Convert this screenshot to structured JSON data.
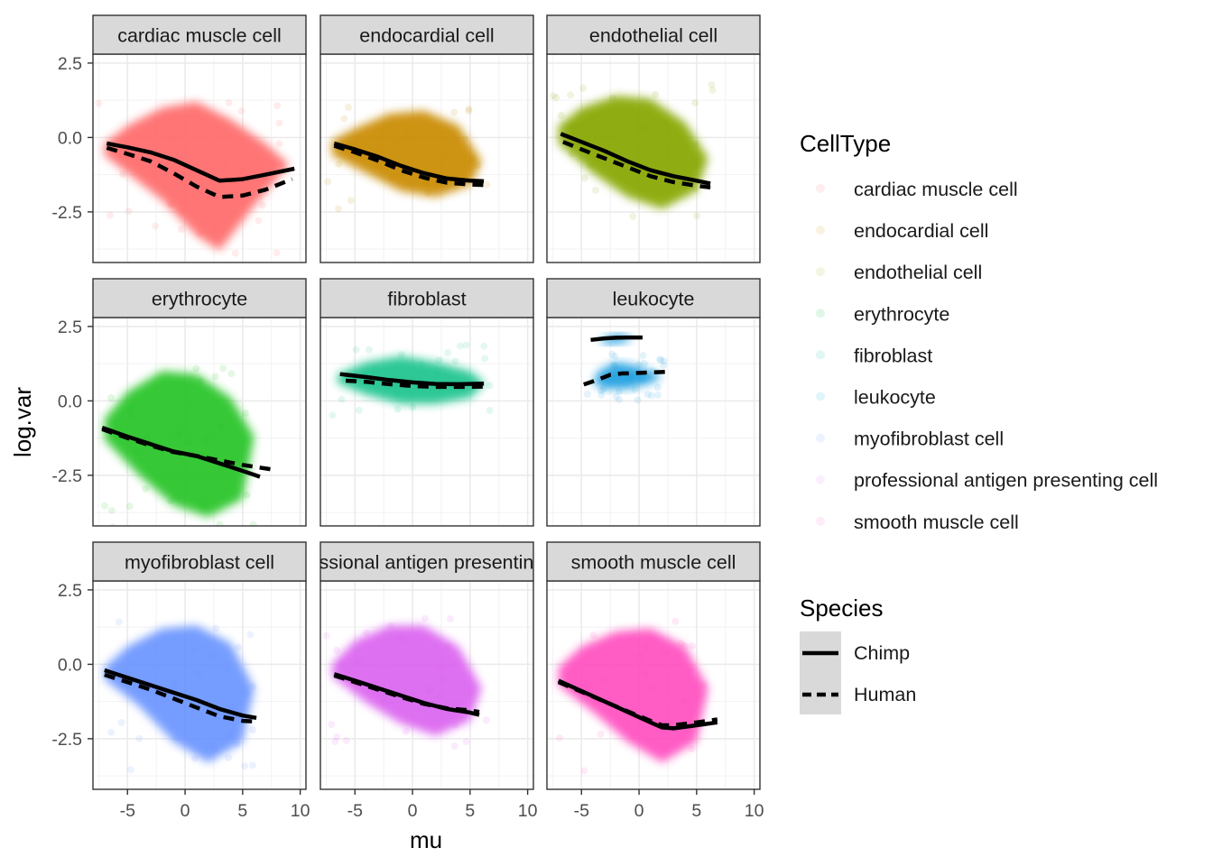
{
  "chart_data": {
    "type": "scatter",
    "facet_type": "scatter with smoothed trend lines",
    "xlabel": "mu",
    "ylabel": "log.var",
    "xlim": [
      -8,
      10.5
    ],
    "ylim": [
      -4.2,
      2.8
    ],
    "x_ticks": [
      -5,
      0,
      5,
      10
    ],
    "x_tick_labels": [
      "-5",
      "0",
      "5",
      "10"
    ],
    "y_ticks": [
      -2.5,
      0.0,
      2.5
    ],
    "y_tick_labels": [
      "-2.5",
      "0.0",
      "2.5"
    ],
    "grid": true,
    "legend_position": "right",
    "legends": {
      "celltype": {
        "title": "CellType",
        "items": [
          {
            "label": "cardiac muscle cell",
            "color": "#F8766D"
          },
          {
            "label": "endocardial cell",
            "color": "#D39200"
          },
          {
            "label": "endothelial cell",
            "color": "#93AA00"
          },
          {
            "label": "erythrocyte",
            "color": "#00BA38"
          },
          {
            "label": "fibroblast",
            "color": "#00C19F"
          },
          {
            "label": "leukocyte",
            "color": "#00B9E3"
          },
          {
            "label": "myofibroblast cell",
            "color": "#619CFF"
          },
          {
            "label": "professional antigen presenting cell",
            "color": "#DB72FB"
          },
          {
            "label": "smooth muscle cell",
            "color": "#FF61C3"
          }
        ]
      },
      "species": {
        "title": "Species",
        "items": [
          {
            "label": "Chimp",
            "linetype": "solid"
          },
          {
            "label": "Human",
            "linetype": "dashed"
          }
        ]
      }
    },
    "panels": [
      {
        "strip": "cardiac muscle cell",
        "color": "#FF6B6B",
        "cloud": [
          [
            -7,
            -0.2
          ],
          [
            -5,
            0.4
          ],
          [
            -2,
            1.0
          ],
          [
            1,
            1.2
          ],
          [
            4,
            0.6
          ],
          [
            7,
            -0.2
          ],
          [
            9,
            -0.9
          ],
          [
            6,
            -2.3
          ],
          [
            3,
            -3.8
          ],
          [
            1,
            -3.3
          ],
          [
            -2,
            -2.1
          ],
          [
            -5,
            -1.2
          ],
          [
            -7,
            -0.6
          ]
        ],
        "chimp": [
          [
            -6.8,
            -0.2
          ],
          [
            -5,
            -0.33
          ],
          [
            -3,
            -0.5
          ],
          [
            -1,
            -0.75
          ],
          [
            1,
            -1.1
          ],
          [
            3,
            -1.45
          ],
          [
            5,
            -1.4
          ],
          [
            7,
            -1.25
          ],
          [
            9.5,
            -1.05
          ]
        ],
        "human": [
          [
            -6.8,
            -0.35
          ],
          [
            -5,
            -0.55
          ],
          [
            -3,
            -0.8
          ],
          [
            -1,
            -1.2
          ],
          [
            1,
            -1.65
          ],
          [
            3,
            -2.0
          ],
          [
            5,
            -1.95
          ],
          [
            7,
            -1.75
          ],
          [
            9.3,
            -1.4
          ]
        ]
      },
      {
        "strip": "endocardial cell",
        "color": "#C98A00",
        "cloud": [
          [
            -7,
            -0.1
          ],
          [
            -5,
            0.3
          ],
          [
            -2,
            0.8
          ],
          [
            1,
            0.9
          ],
          [
            4,
            0.4
          ],
          [
            6,
            -0.8
          ],
          [
            5,
            -1.6
          ],
          [
            2,
            -2.0
          ],
          [
            -1,
            -1.8
          ],
          [
            -4,
            -1.2
          ],
          [
            -7,
            -0.6
          ]
        ],
        "chimp": [
          [
            -6.8,
            -0.2
          ],
          [
            -5,
            -0.4
          ],
          [
            -3,
            -0.65
          ],
          [
            -1,
            -0.95
          ],
          [
            1,
            -1.2
          ],
          [
            3,
            -1.38
          ],
          [
            5,
            -1.45
          ],
          [
            6.2,
            -1.47
          ]
        ],
        "human": [
          [
            -6.8,
            -0.28
          ],
          [
            -5,
            -0.5
          ],
          [
            -3,
            -0.78
          ],
          [
            -1,
            -1.1
          ],
          [
            1,
            -1.35
          ],
          [
            3,
            -1.52
          ],
          [
            5,
            -1.58
          ],
          [
            6.2,
            -1.6
          ]
        ]
      },
      {
        "strip": "endothelial cell",
        "color": "#86A700",
        "cloud": [
          [
            -7,
            0.4
          ],
          [
            -5,
            1.0
          ],
          [
            -2,
            1.4
          ],
          [
            1,
            1.3
          ],
          [
            4,
            0.5
          ],
          [
            6,
            -0.7
          ],
          [
            5,
            -1.8
          ],
          [
            2,
            -2.4
          ],
          [
            -1,
            -2.0
          ],
          [
            -4,
            -1.2
          ],
          [
            -7,
            -0.2
          ]
        ],
        "chimp": [
          [
            -6.8,
            0.12
          ],
          [
            -5,
            -0.15
          ],
          [
            -3,
            -0.45
          ],
          [
            -1,
            -0.8
          ],
          [
            1,
            -1.1
          ],
          [
            3,
            -1.3
          ],
          [
            5,
            -1.45
          ],
          [
            6.2,
            -1.55
          ]
        ],
        "human": [
          [
            -6.6,
            -0.15
          ],
          [
            -5,
            -0.4
          ],
          [
            -3,
            -0.7
          ],
          [
            -1,
            -1.0
          ],
          [
            1,
            -1.3
          ],
          [
            3,
            -1.5
          ],
          [
            5,
            -1.62
          ],
          [
            6.2,
            -1.68
          ]
        ]
      },
      {
        "strip": "erythrocyte",
        "color": "#25C425",
        "cloud": [
          [
            -7,
            -0.6
          ],
          [
            -5,
            0.3
          ],
          [
            -2,
            1.0
          ],
          [
            1,
            0.9
          ],
          [
            4,
            0.1
          ],
          [
            6,
            -1.2
          ],
          [
            5,
            -3.3
          ],
          [
            2,
            -3.9
          ],
          [
            -1,
            -3.5
          ],
          [
            -4,
            -2.5
          ],
          [
            -7,
            -1.3
          ]
        ],
        "chimp": [
          [
            -7.2,
            -0.9
          ],
          [
            -5,
            -1.2
          ],
          [
            -3,
            -1.45
          ],
          [
            -1,
            -1.7
          ],
          [
            1,
            -1.85
          ],
          [
            3,
            -2.1
          ],
          [
            5,
            -2.35
          ],
          [
            6.5,
            -2.55
          ]
        ],
        "human": [
          [
            -7.2,
            -0.95
          ],
          [
            -5,
            -1.25
          ],
          [
            -3,
            -1.5
          ],
          [
            -1,
            -1.72
          ],
          [
            1,
            -1.85
          ],
          [
            3,
            -2.0
          ],
          [
            5,
            -2.15
          ],
          [
            7.5,
            -2.3
          ]
        ]
      },
      {
        "strip": "fibroblast",
        "color": "#1FC48E",
        "cloud": [
          [
            -6.5,
            0.9
          ],
          [
            -4,
            1.3
          ],
          [
            -1,
            1.5
          ],
          [
            2,
            1.3
          ],
          [
            5,
            1.0
          ],
          [
            6.3,
            0.6
          ],
          [
            5,
            0.1
          ],
          [
            2,
            -0.1
          ],
          [
            -1,
            -0.1
          ],
          [
            -4,
            0.2
          ],
          [
            -6.5,
            0.6
          ]
        ],
        "chimp": [
          [
            -6.3,
            0.9
          ],
          [
            -4,
            0.8
          ],
          [
            -2,
            0.7
          ],
          [
            0,
            0.62
          ],
          [
            2,
            0.57
          ],
          [
            4,
            0.56
          ],
          [
            6.2,
            0.58
          ]
        ],
        "human": [
          [
            -5.8,
            0.68
          ],
          [
            -4,
            0.64
          ],
          [
            -2,
            0.56
          ],
          [
            0,
            0.5
          ],
          [
            2,
            0.47
          ],
          [
            4,
            0.47
          ],
          [
            6.2,
            0.48
          ]
        ]
      },
      {
        "strip": "leukocyte",
        "color": "#1E9FE0",
        "cloud": [
          [
            -4,
            0.6
          ],
          [
            -3.5,
            1.0
          ],
          [
            -2,
            1.3
          ],
          [
            -0.5,
            1.2
          ],
          [
            1,
            1.0
          ],
          [
            2,
            0.8
          ],
          [
            1,
            0.6
          ],
          [
            -1,
            0.4
          ],
          [
            -3,
            0.4
          ]
        ],
        "cloud2": [
          [
            -3.5,
            2.0
          ],
          [
            -2.5,
            2.2
          ],
          [
            -1.5,
            2.25
          ],
          [
            -0.5,
            2.1
          ],
          [
            -1.5,
            1.95
          ],
          [
            -2.8,
            1.9
          ]
        ],
        "chimp": [
          [
            -4.2,
            2.05
          ],
          [
            -3,
            2.1
          ],
          [
            -2,
            2.12
          ],
          [
            -1,
            2.13
          ],
          [
            0,
            2.13
          ],
          [
            0.3,
            2.13
          ]
        ],
        "human": [
          [
            -4.8,
            0.55
          ],
          [
            -3.5,
            0.72
          ],
          [
            -2.5,
            0.88
          ],
          [
            -1.5,
            0.92
          ],
          [
            -0.5,
            0.93
          ],
          [
            0.5,
            0.95
          ],
          [
            2.5,
            0.98
          ]
        ]
      },
      {
        "strip": "myofibroblast cell",
        "color": "#6A94FF",
        "cloud": [
          [
            -7,
            -0.1
          ],
          [
            -5,
            0.6
          ],
          [
            -2,
            1.2
          ],
          [
            1,
            1.3
          ],
          [
            4,
            0.7
          ],
          [
            6,
            -0.8
          ],
          [
            5,
            -2.6
          ],
          [
            2,
            -3.3
          ],
          [
            -1,
            -2.6
          ],
          [
            -4,
            -1.4
          ],
          [
            -7,
            -0.5
          ]
        ],
        "chimp": [
          [
            -7,
            -0.2
          ],
          [
            -5,
            -0.45
          ],
          [
            -3,
            -0.7
          ],
          [
            -1,
            -0.95
          ],
          [
            1,
            -1.2
          ],
          [
            3,
            -1.5
          ],
          [
            5,
            -1.72
          ],
          [
            6.2,
            -1.8
          ]
        ],
        "human": [
          [
            -7,
            -0.35
          ],
          [
            -5,
            -0.6
          ],
          [
            -3,
            -0.85
          ],
          [
            -1,
            -1.15
          ],
          [
            1,
            -1.45
          ],
          [
            3,
            -1.75
          ],
          [
            5,
            -1.9
          ],
          [
            6.2,
            -1.92
          ]
        ]
      },
      {
        "strip": "professional antigen presenting cell",
        "color": "#DB63F0",
        "cloud": [
          [
            -7,
            0.0
          ],
          [
            -5,
            0.8
          ],
          [
            -2,
            1.3
          ],
          [
            1,
            1.3
          ],
          [
            4,
            0.6
          ],
          [
            6,
            -0.8
          ],
          [
            5,
            -1.9
          ],
          [
            2,
            -2.4
          ],
          [
            -1,
            -2.0
          ],
          [
            -4,
            -1.3
          ],
          [
            -7,
            -0.4
          ]
        ],
        "chimp": [
          [
            -6.8,
            -0.33
          ],
          [
            -5,
            -0.55
          ],
          [
            -3,
            -0.8
          ],
          [
            -1,
            -1.05
          ],
          [
            1,
            -1.3
          ],
          [
            3,
            -1.5
          ],
          [
            5,
            -1.62
          ],
          [
            5.8,
            -1.7
          ]
        ],
        "human": [
          [
            -6.8,
            -0.38
          ],
          [
            -5,
            -0.6
          ],
          [
            -3,
            -0.85
          ],
          [
            -1,
            -1.1
          ],
          [
            1,
            -1.33
          ],
          [
            3,
            -1.48
          ],
          [
            5,
            -1.55
          ],
          [
            5.8,
            -1.6
          ]
        ]
      },
      {
        "strip": "smooth muscle cell",
        "color": "#FF4FC0",
        "cloud": [
          [
            -7,
            -0.1
          ],
          [
            -5,
            0.6
          ],
          [
            -2,
            1.1
          ],
          [
            1,
            1.2
          ],
          [
            4,
            0.6
          ],
          [
            6,
            -0.8
          ],
          [
            5,
            -2.6
          ],
          [
            2,
            -3.3
          ],
          [
            -1,
            -2.6
          ],
          [
            -4,
            -1.6
          ],
          [
            -7,
            -0.7
          ]
        ],
        "chimp": [
          [
            -7,
            -0.55
          ],
          [
            -5,
            -0.9
          ],
          [
            -3,
            -1.25
          ],
          [
            -1,
            -1.6
          ],
          [
            1,
            -1.95
          ],
          [
            2,
            -2.12
          ],
          [
            3,
            -2.15
          ],
          [
            5,
            -2.05
          ],
          [
            6.8,
            -1.95
          ]
        ],
        "human": [
          [
            -7,
            -0.6
          ],
          [
            -5,
            -0.92
          ],
          [
            -3,
            -1.25
          ],
          [
            -1,
            -1.58
          ],
          [
            1,
            -1.9
          ],
          [
            2,
            -2.05
          ],
          [
            3,
            -2.05
          ],
          [
            5,
            -1.95
          ],
          [
            6.8,
            -1.85
          ]
        ]
      }
    ]
  }
}
